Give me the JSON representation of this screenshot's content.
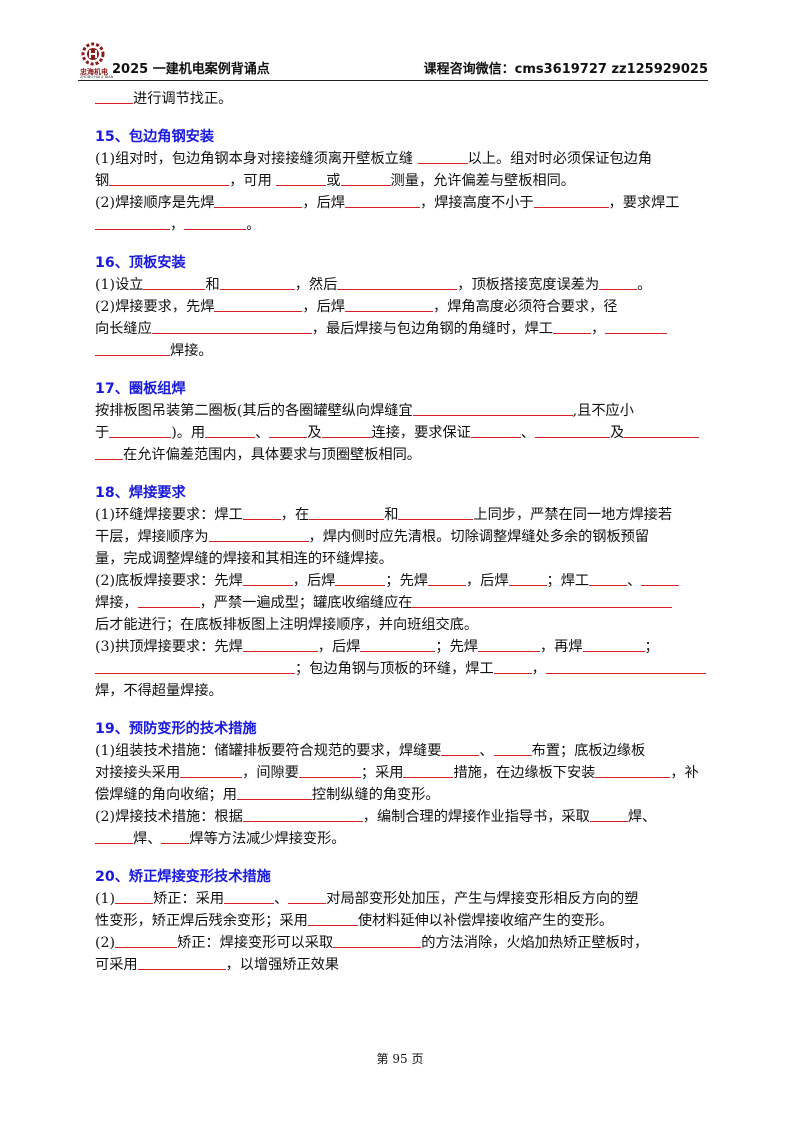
{
  "header": {
    "logo_cn": "忠海机电",
    "logo_en": "ZHONG HAI JI DIAN",
    "title": "2025 一建机电案例背诵点",
    "contact": "课程咨询微信：cms3619727   zz125929025"
  },
  "lines": {
    "l0": "进行调节找正。",
    "h15": "15、包边角钢安装",
    "s15a1a": "(1)组对时，包边角钢本身对接接缝须离开壁板立缝",
    "s15a1b": "以上。组对时必须保证包边角",
    "s15a2a": "钢",
    "s15a2b": "，可用",
    "s15a2c": "或",
    "s15a2d": "测量，允许偏差与壁板相同。",
    "s15b1a": "(2)焊接顺序是先焊",
    "s15b1b": "，后焊",
    "s15b1c": "，焊接高度不小于",
    "s15b1d": "，要求焊工",
    "s15b2a": "，",
    "s15b2b": "。",
    "h16": "16、顶板安装",
    "s16a1a": "(1)设立",
    "s16a1b": "和",
    "s16a1c": "，然后",
    "s16a1d": "，顶板搭接宽度误差为",
    "s16a1e": "。",
    "s16b1a": "(2)焊接要求，先焊",
    "s16b1b": "，后焊",
    "s16b1c": "，焊角高度必须符合要求，径",
    "s16b2a": "向长缝应",
    "s16b2b": "，最后焊接与包边角钢的角缝时，焊工",
    "s16b2c": "，",
    "s16b3a": "焊接。",
    "h17": "17、圈板组焊",
    "s17a1a": "按排板图吊装第二圈板(其后的各圈罐壁纵向焊缝宜",
    "s17a1b": ",且不应小",
    "s17a2a": "于",
    "s17a2b": ")。用",
    "s17a2c": "、",
    "s17a2d": "及",
    "s17a2e": "连接，要求保证",
    "s17a2f": "、",
    "s17a2g": "及",
    "s17a3a": "在允许偏差范围内，具体要求与顶圈壁板相同。",
    "h18": "18、焊接要求",
    "s18a1a": "(1)环缝焊接要求：焊工",
    "s18a1b": "，在",
    "s18a1c": "和",
    "s18a1d": "上同步，严禁在同一地方焊接若",
    "s18a2a": "干层，焊接顺序为",
    "s18a2b": "，焊内侧时应先清根。切除调整焊缝处多余的钢板预留",
    "s18a3a": "量，完成调整焊缝的焊接和其相连的环缝焊接。",
    "s18b1a": "(2)底板焊接要求：先焊",
    "s18b1b": "，后焊",
    "s18b1c": "；先焊",
    "s18b1d": "，后焊",
    "s18b1e": "；焊工",
    "s18b1f": "、",
    "s18b2a": "焊接，",
    "s18b2b": "，严禁一遍成型；罐底收缩缝应在",
    "s18b3a": "后才能进行；在底板排板图上注明焊接顺序，并向班组交底。",
    "s18c1a": "(3)拱顶焊接要求：先焊",
    "s18c1b": "，后焊",
    "s18c1c": "；先焊",
    "s18c1d": "，再焊",
    "s18c1e": "；",
    "s18c2a": "；包边角钢与顶板的环缝，焊工",
    "s18c2b": "，",
    "s18c3a": "焊，不得超量焊接。",
    "h19": "19、预防变形的技术措施",
    "s19a1a": "(1)组装技术措施：储罐排板要符合规范的要求，焊缝要",
    "s19a1b": "、",
    "s19a1c": "布置；底板边缘板",
    "s19a2a": "对接接头采用",
    "s19a2b": "，间隙要",
    "s19a2c": "；采用",
    "s19a2d": "措施，在边缘板下安装",
    "s19a2e": "，补",
    "s19a3a": "偿焊缝的角向收缩；用",
    "s19a3b": "控制纵缝的角变形。",
    "s19b1a": "(2)焊接技术措施：根据",
    "s19b1b": "，编制合理的焊接作业指导书，采取",
    "s19b1c": "焊、",
    "s19b2a": "焊、",
    "s19b2b": "焊等方法减少焊接变形。",
    "h20": "20、矫正焊接变形技术措施",
    "s20a1a": "(1)",
    "s20a1b": "矫正：采用",
    "s20a1c": "、",
    "s20a1d": "对局部变形处加压，产生与焊接变形相反方向的塑",
    "s20a2a": "性变形，矫正焊后残余变形；采用",
    "s20a2b": "使材料延伸以补偿焊接收缩产生的变形。",
    "s20b1a": "(2)",
    "s20b1b": "矫正：焊接变形可以采取",
    "s20b1c": "的方法消除，火焰加热矫正壁板时，",
    "s20b2a": "可采用",
    "s20b2b": "，以增强矫正效果"
  },
  "footer": {
    "page": "第 95 页"
  },
  "colors": {
    "heading": "#1a1adc",
    "blank_line": "#d62020",
    "logo": "#8b1a1a"
  }
}
